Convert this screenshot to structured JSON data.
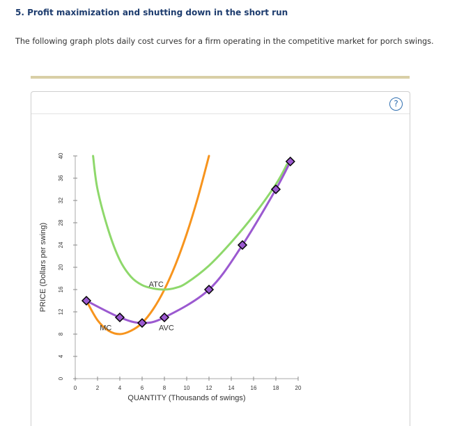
{
  "question": {
    "title": "5. Profit maximization and shutting down in the short run",
    "intro": "The following graph plots daily cost curves for a firm operating in the competitive market for porch swings."
  },
  "help": {
    "symbol": "?",
    "icon": "help-icon"
  },
  "colors": {
    "mc": "#f7941d",
    "atc": "#8ed86b",
    "avc": "#9b59d0",
    "marker_fill": "#9b59d0",
    "marker_stroke": "#000000",
    "title": "#1d3c6e",
    "divider": "#d9cfa6",
    "help": "#2f6fb0"
  },
  "chart_data": {
    "type": "line",
    "xlabel": "QUANTITY (Thousands of swings)",
    "ylabel": "PRICE (Dollars per swing)",
    "xlim": [
      0,
      20
    ],
    "ylim": [
      0,
      40
    ],
    "xticks": [
      0,
      2,
      4,
      6,
      8,
      10,
      12,
      14,
      16,
      18,
      20
    ],
    "yticks": [
      0,
      4,
      8,
      12,
      16,
      20,
      24,
      28,
      32,
      36,
      40
    ],
    "grid": false,
    "series": [
      {
        "name": "MC",
        "color": "#f7941d",
        "label_at": [
          2.2,
          8.7
        ],
        "x": [
          1,
          2,
          3,
          4,
          5,
          6,
          7,
          8,
          9,
          10,
          11,
          12
        ],
        "y": [
          14,
          10.5,
          8.6,
          8,
          8.6,
          10,
          12.5,
          16,
          20.5,
          26,
          32.5,
          40
        ]
      },
      {
        "name": "ATC",
        "color": "#8ed86b",
        "label_at": [
          6.6,
          16.5
        ],
        "x": [
          1.6,
          2,
          3,
          4,
          5,
          6,
          7,
          8,
          9,
          10,
          12,
          14,
          16,
          18,
          19
        ],
        "y": [
          40,
          34,
          26.5,
          21.3,
          18.3,
          16.8,
          16.2,
          16,
          16.3,
          17.2,
          20.3,
          24.5,
          29.3,
          34.9,
          38.5
        ]
      },
      {
        "name": "AVC",
        "color": "#9b59d0",
        "label_at": [
          7.5,
          8.7
        ],
        "markers": true,
        "x": [
          1,
          4,
          6,
          8,
          12,
          15,
          18,
          19.3
        ],
        "y": [
          14,
          11,
          10,
          11,
          16,
          24,
          34,
          39
        ]
      }
    ]
  }
}
